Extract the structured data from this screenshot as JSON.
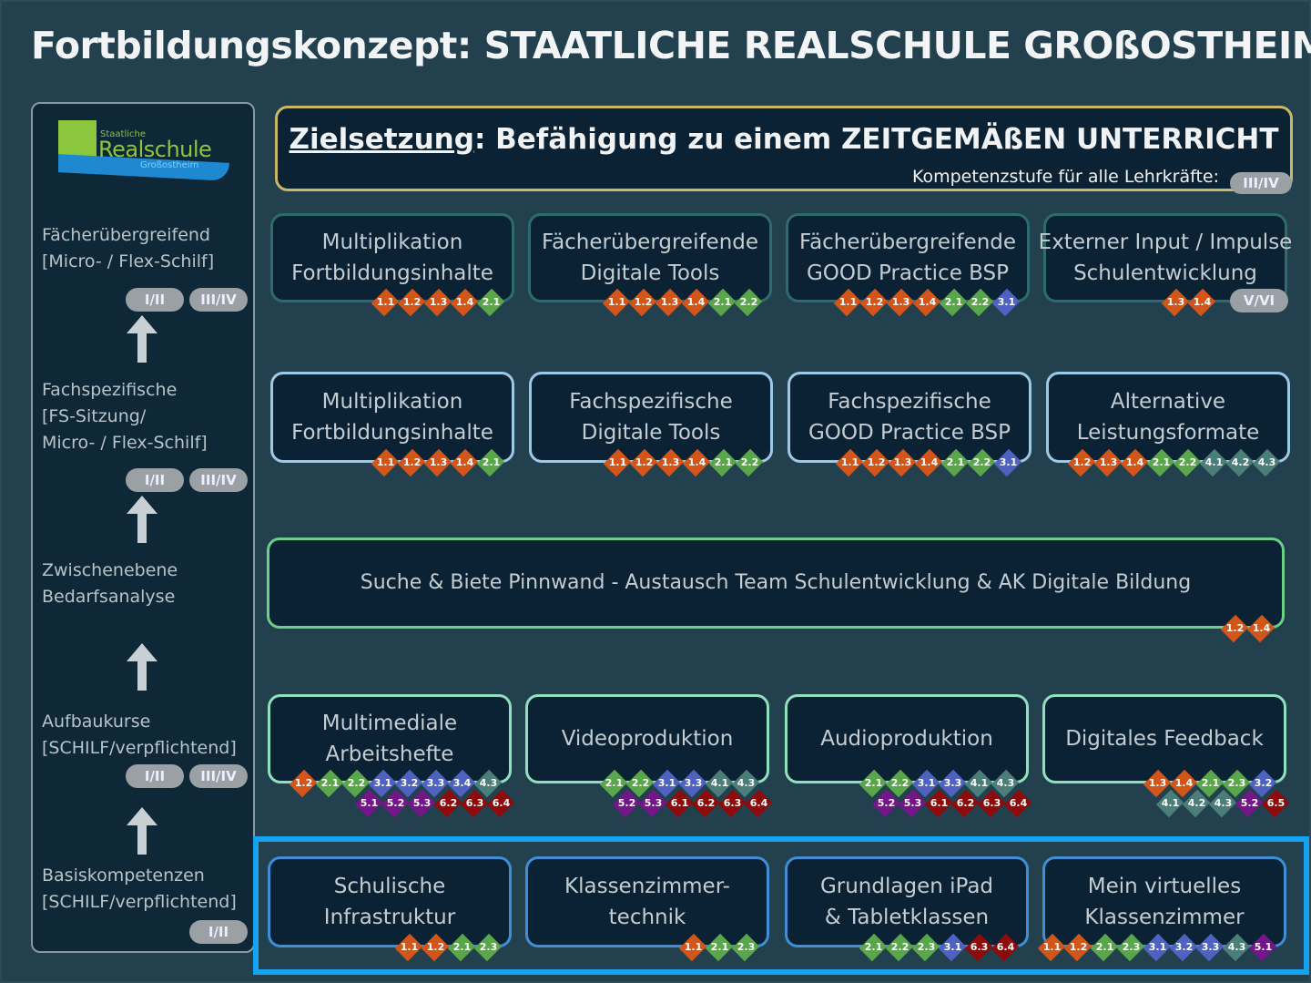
{
  "title": "Fortbildungskonzept: STAATLICHE REALSCHULE GROßOSTHEIM",
  "colors": {
    "orange": "#d2551a",
    "green": "#5aa64a",
    "blue": "#4f62c2",
    "teal": "#4b7d79",
    "purple": "#74168a",
    "red": "#8f0a0a",
    "highlight": "#15a2f0"
  },
  "logo": {
    "line1": "Staatliche",
    "line2": "Realschule",
    "line3": "Großostheim"
  },
  "sidebar": {
    "levels": [
      {
        "label": "Fächerübergreifend\n[Micro- / Flex-Schilf]",
        "pills": [
          "I/II",
          "III/IV"
        ]
      },
      {
        "label": "Fachspezifische\n[FS-Sitzung/\nMicro- / Flex-Schilf]",
        "pills": [
          "I/II",
          "III/IV"
        ]
      },
      {
        "label": "Zwischenebene\nBedarfsanalyse",
        "pills": []
      },
      {
        "label": "Aufbaukurse\n[SCHILF/verpflichtend]",
        "pills": [
          "I/II",
          "III/IV"
        ]
      },
      {
        "label": "Basiskompetenzen\n[SCHILF/verpflichtend]",
        "pills": [
          "I/II"
        ]
      }
    ]
  },
  "ziel": {
    "prefix": "Zielsetzung",
    "text": ": Befähigung zu einem ZEITGEMÄßEN UNTERRICHT",
    "kompetenz_label": "Kompetenzstufe für alle Lehrkräfte:",
    "kompetenz_pill": "III/IV"
  },
  "rows": [
    {
      "boxes": [
        {
          "label": "Multiplikation\nFortbildungsinhalte",
          "badges": [
            [
              "1.1",
              "1.2",
              "1.3",
              "1.4",
              "2.1"
            ]
          ]
        },
        {
          "label": "Fächerübergreifende\nDigitale Tools",
          "badges": [
            [
              "1.1",
              "1.2",
              "1.3",
              "1.4",
              "2.1",
              "2.2"
            ]
          ]
        },
        {
          "label": "Fächerübergreifende\nGOOD Practice BSP",
          "badges": [
            [
              "1.1",
              "1.2",
              "1.3",
              "1.4",
              "2.1",
              "2.2",
              "3.1"
            ]
          ]
        },
        {
          "label": "Externer Input / Impulse\nSchulentwicklung",
          "badges": [
            [
              "1.3",
              "1.4"
            ]
          ],
          "pill": "V/VI"
        }
      ]
    },
    {
      "boxes": [
        {
          "label": "Multiplikation\nFortbildungsinhalte",
          "badges": [
            [
              "1.1",
              "1.2",
              "1.3",
              "1.4",
              "2.1"
            ]
          ]
        },
        {
          "label": "Fachspezifische\nDigitale Tools",
          "badges": [
            [
              "1.1",
              "1.2",
              "1.3",
              "1.4",
              "2.1",
              "2.2"
            ]
          ]
        },
        {
          "label": "Fachspezifische\nGOOD Practice BSP",
          "badges": [
            [
              "1.1",
              "1.2",
              "1.3",
              "1.4",
              "2.1",
              "2.2",
              "3.1"
            ]
          ]
        },
        {
          "label": "Alternative\nLeistungsformate",
          "badges": [
            [
              "1.2",
              "1.3",
              "1.4",
              "2.1",
              "2.2",
              "4.1",
              "4.2",
              "4.3"
            ]
          ]
        }
      ]
    },
    {
      "boxes": [
        {
          "label": "Suche & Biete Pinnwand - Austausch Team Schulentwicklung & AK Digitale Bildung",
          "badges": [
            [
              "1.2",
              "1.4"
            ]
          ]
        }
      ]
    },
    {
      "boxes": [
        {
          "label": "Multimediale\nArbeitshefte",
          "badges": [
            [
              "1.2",
              "2.1",
              "2.2",
              "3.1",
              "3.2",
              "3.3",
              "3.4",
              "4.3"
            ],
            [
              "5.1",
              "5.2",
              "5.3",
              "6.2",
              "6.3",
              "6.4"
            ]
          ]
        },
        {
          "label": "Videoproduktion",
          "badges": [
            [
              "2.1",
              "2.2",
              "3.1",
              "3.3",
              "4.1",
              "4.3"
            ],
            [
              "5.2",
              "5.3",
              "6.1",
              "6.2",
              "6.3",
              "6.4"
            ]
          ]
        },
        {
          "label": "Audioproduktion",
          "badges": [
            [
              "2.1",
              "2.2",
              "3.1",
              "3.3",
              "4.1",
              "4.3"
            ],
            [
              "5.2",
              "5.3",
              "6.1",
              "6.2",
              "6.3",
              "6.4"
            ]
          ]
        },
        {
          "label": "Digitales Feedback",
          "badges": [
            [
              "1.3",
              "1.4",
              "2.1",
              "2.3",
              "3.2"
            ],
            [
              "4.1",
              "4.2",
              "4.3",
              "5.2",
              "6.5"
            ]
          ]
        }
      ]
    },
    {
      "boxes": [
        {
          "label": "Schulische\nInfrastruktur",
          "badges": [
            [
              "1.1",
              "1.2",
              "2.1",
              "2.3"
            ]
          ]
        },
        {
          "label": "Klassenzimmer-\ntechnik",
          "badges": [
            [
              "1.1",
              "2.1",
              "2.3"
            ]
          ]
        },
        {
          "label": "Grundlagen iPad\n& Tabletklassen",
          "badges": [
            [
              "2.1",
              "2.2",
              "2.3",
              "3.1",
              "6.3",
              "6.4"
            ]
          ]
        },
        {
          "label": "Mein virtuelles\nKlassenzimmer",
          "badges": [
            [
              "1.1",
              "1.2",
              "2.1",
              "2.3",
              "3.1",
              "3.2",
              "3.3",
              "4.3",
              "5.1"
            ]
          ]
        }
      ]
    }
  ]
}
